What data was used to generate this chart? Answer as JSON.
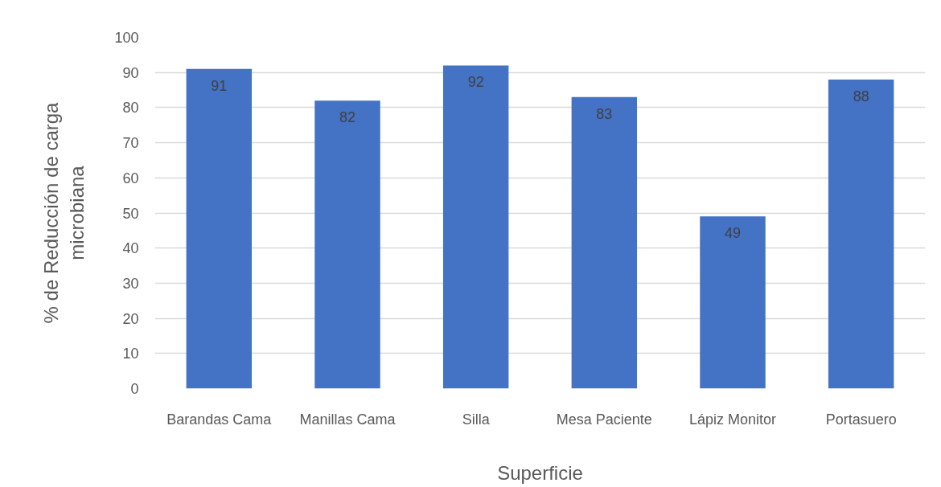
{
  "chart_data": {
    "type": "bar",
    "xlabel": "Superficie",
    "ylabel": "% de Reducción de carga microbiana",
    "categories": [
      "Barandas Cama",
      "Manillas Cama",
      "Silla",
      "Mesa Paciente",
      "Lápiz Monitor",
      "Portasuero"
    ],
    "values": [
      91,
      82,
      92,
      83,
      49,
      88
    ],
    "color": "#4472c4",
    "ylim": [
      0,
      100
    ],
    "yticks": [
      0,
      10,
      20,
      30,
      40,
      50,
      60,
      70,
      80,
      90,
      100
    ],
    "grid": "y",
    "data_labels": true
  }
}
